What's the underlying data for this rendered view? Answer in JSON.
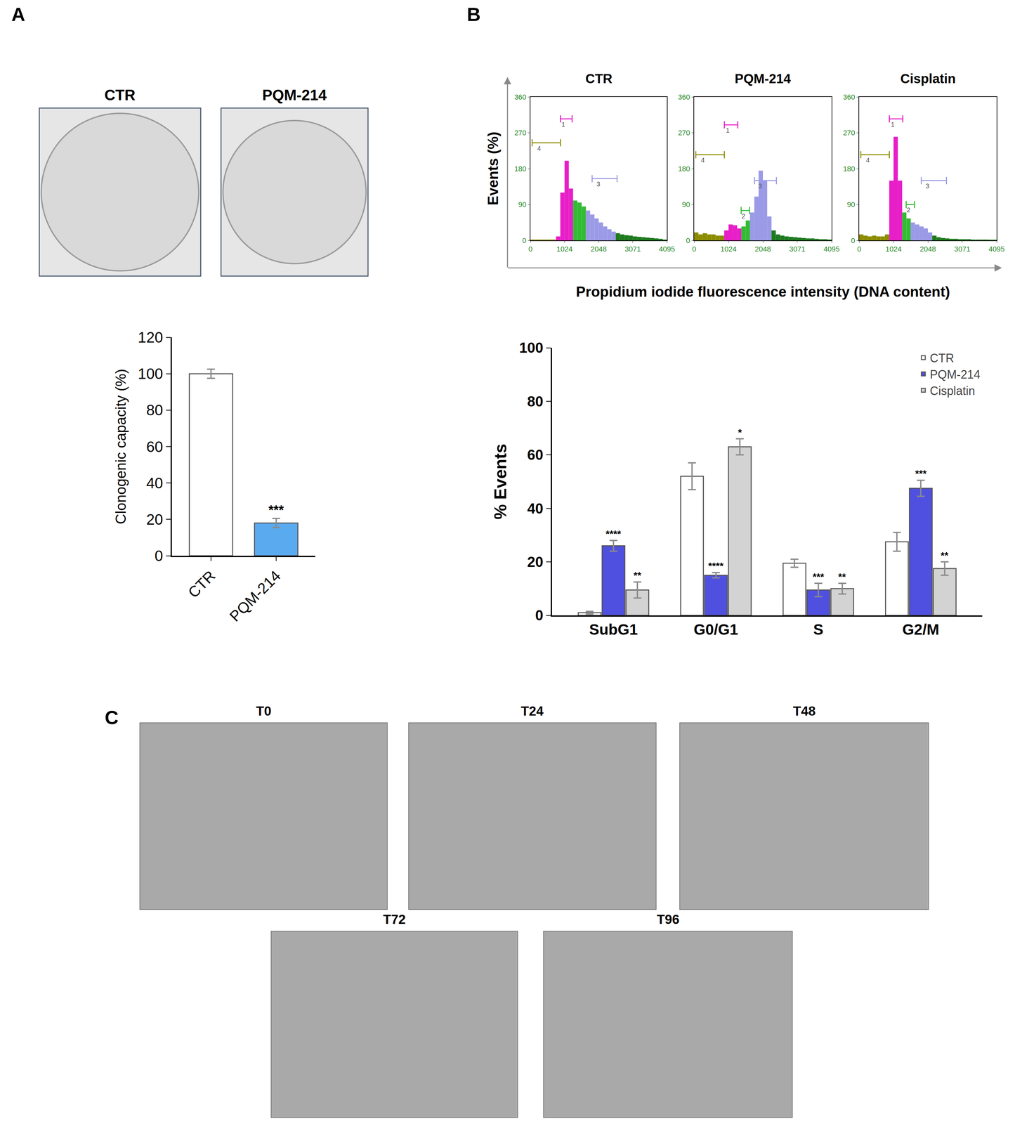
{
  "chart_data": [
    {
      "type": "dish",
      "panel": "A",
      "title": "CTR"
    },
    {
      "type": "dish",
      "title": "PQM-214"
    },
    {
      "type": "bar",
      "categories": [
        "CTR",
        "PQM-214"
      ],
      "values": [
        100,
        18
      ],
      "errors": [
        2.5,
        2.5
      ],
      "significance": [
        null,
        "***"
      ],
      "colors": [
        "#ffffff",
        "#5aaaf0"
      ],
      "ylabel": "Clonogenic capacity (%)",
      "ylim": [
        0,
        120
      ],
      "yticks": [
        0,
        20,
        40,
        60,
        80,
        100,
        120
      ],
      "grid": false
    },
    {
      "type": "histogram",
      "panel": "B",
      "title": "CTR",
      "ylabel": "Events (%)",
      "bins": [
        0,
        128,
        256,
        384,
        512,
        640,
        768,
        896,
        1024,
        1152,
        1280,
        1408,
        1536,
        1664,
        1792,
        1920,
        2048,
        2176,
        2304,
        2432,
        2560,
        2688,
        2816,
        2944,
        3072,
        3200,
        3328,
        3456,
        3584,
        3712,
        3840,
        3968,
        4096
      ],
      "counts": [
        2,
        2,
        2,
        2,
        2,
        2,
        10,
        120,
        200,
        130,
        100,
        95,
        85,
        75,
        65,
        55,
        45,
        35,
        28,
        22,
        18,
        15,
        13,
        12,
        10,
        9,
        8,
        7,
        6,
        5,
        4,
        2
      ],
      "colors": [
        "#8c8c00",
        "#8c8c00",
        "#8c8c00",
        "#8c8c00",
        "#8c8c00",
        "#8c8c00",
        "#e81ec8",
        "#e81ec8",
        "#e81ec8",
        "#e81ec8",
        "#33bb33",
        "#33bb33",
        "#33bb33",
        "#9a9ae6",
        "#9a9ae6",
        "#9a9ae6",
        "#9a9ae6",
        "#9a9ae6",
        "#9a9ae6",
        "#9a9ae6",
        "#1f7a1f",
        "#1f7a1f",
        "#1f7a1f",
        "#1f7a1f",
        "#1f7a1f",
        "#1f7a1f",
        "#1f7a1f",
        "#1f7a1f",
        "#1f7a1f",
        "#1f7a1f",
        "#1f7a1f",
        "#1f7a1f"
      ],
      "gates": [
        {
          "label": "4",
          "range": [
            50,
            900
          ],
          "y": 245,
          "color": "#8c8c00"
        },
        {
          "label": "1",
          "range": [
            900,
            1250
          ],
          "y": 305,
          "color": "#e81ec8"
        },
        {
          "label": "3",
          "range": [
            1850,
            2600
          ],
          "y": 155,
          "color": "#9a9ae6"
        }
      ],
      "xlim": [
        0,
        4095
      ],
      "xticks": [
        0,
        1024,
        2048,
        3071,
        4095
      ],
      "ylim": [
        0,
        360
      ],
      "yticks": [
        0,
        90,
        180,
        270,
        360
      ]
    },
    {
      "type": "histogram",
      "title": "PQM-214",
      "xlabel": "Propidium iodide fluorescence intensity (DNA content)",
      "bins": [
        0,
        128,
        256,
        384,
        512,
        640,
        768,
        896,
        1024,
        1152,
        1280,
        1408,
        1536,
        1664,
        1792,
        1920,
        2048,
        2176,
        2304,
        2432,
        2560,
        2688,
        2816,
        2944,
        3072,
        3200,
        3328,
        3456,
        3584,
        3712,
        3840,
        3968,
        4096
      ],
      "counts": [
        20,
        15,
        18,
        15,
        15,
        12,
        12,
        25,
        40,
        38,
        30,
        35,
        50,
        70,
        110,
        175,
        150,
        60,
        25,
        15,
        12,
        10,
        9,
        8,
        7,
        6,
        5,
        5,
        4,
        3,
        3,
        2
      ],
      "colors": [
        "#8c8c00",
        "#8c8c00",
        "#8c8c00",
        "#8c8c00",
        "#8c8c00",
        "#8c8c00",
        "#8c8c00",
        "#e81ec8",
        "#e81ec8",
        "#e81ec8",
        "#e81ec8",
        "#33bb33",
        "#33bb33",
        "#9a9ae6",
        "#9a9ae6",
        "#9a9ae6",
        "#9a9ae6",
        "#9a9ae6",
        "#1f7a1f",
        "#1f7a1f",
        "#1f7a1f",
        "#1f7a1f",
        "#1f7a1f",
        "#1f7a1f",
        "#1f7a1f",
        "#1f7a1f",
        "#1f7a1f",
        "#1f7a1f",
        "#1f7a1f",
        "#1f7a1f",
        "#1f7a1f",
        "#1f7a1f"
      ],
      "gates": [
        {
          "label": "4",
          "range": [
            50,
            900
          ],
          "y": 215,
          "color": "#8c8c00"
        },
        {
          "label": "1",
          "range": [
            900,
            1300
          ],
          "y": 290,
          "color": "#e81ec8"
        },
        {
          "label": "2",
          "range": [
            1400,
            1650
          ],
          "y": 75,
          "color": "#33bb33"
        },
        {
          "label": "3",
          "range": [
            1800,
            2450
          ],
          "y": 150,
          "color": "#9a9ae6"
        }
      ],
      "xlim": [
        0,
        4095
      ],
      "xticks": [
        0,
        1024,
        2048,
        3071,
        4095
      ],
      "ylim": [
        0,
        360
      ],
      "yticks": [
        0,
        90,
        180,
        270,
        360
      ]
    },
    {
      "type": "histogram",
      "title": "Cisplatin",
      "bins": [
        0,
        128,
        256,
        384,
        512,
        640,
        768,
        896,
        1024,
        1152,
        1280,
        1408,
        1536,
        1664,
        1792,
        1920,
        2048,
        2176,
        2304,
        2432,
        2560,
        2688,
        2816,
        2944,
        3072,
        3200,
        3328,
        3456,
        3584,
        3712,
        3840,
        3968,
        4096
      ],
      "counts": [
        15,
        12,
        10,
        12,
        10,
        10,
        15,
        150,
        260,
        150,
        70,
        55,
        45,
        40,
        35,
        30,
        20,
        12,
        8,
        6,
        5,
        4,
        4,
        3,
        3,
        3,
        2,
        2,
        2,
        2,
        1,
        1
      ],
      "colors": [
        "#8c8c00",
        "#8c8c00",
        "#8c8c00",
        "#8c8c00",
        "#8c8c00",
        "#8c8c00",
        "#8c8c00",
        "#e81ec8",
        "#e81ec8",
        "#e81ec8",
        "#33bb33",
        "#33bb33",
        "#9a9ae6",
        "#9a9ae6",
        "#9a9ae6",
        "#9a9ae6",
        "#9a9ae6",
        "#1f7a1f",
        "#1f7a1f",
        "#1f7a1f",
        "#1f7a1f",
        "#1f7a1f",
        "#1f7a1f",
        "#1f7a1f",
        "#1f7a1f",
        "#1f7a1f",
        "#1f7a1f",
        "#1f7a1f",
        "#1f7a1f",
        "#1f7a1f",
        "#1f7a1f",
        "#1f7a1f"
      ],
      "gates": [
        {
          "label": "4",
          "range": [
            50,
            900
          ],
          "y": 215,
          "color": "#8c8c00"
        },
        {
          "label": "1",
          "range": [
            900,
            1300
          ],
          "y": 305,
          "color": "#e81ec8"
        },
        {
          "label": "2",
          "range": [
            1400,
            1650
          ],
          "y": 90,
          "color": "#33bb33"
        },
        {
          "label": "3",
          "range": [
            1850,
            2600
          ],
          "y": 150,
          "color": "#9a9ae6"
        }
      ],
      "xlim": [
        0,
        4095
      ],
      "xticks": [
        0,
        1024,
        2048,
        3071,
        4095
      ],
      "ylim": [
        0,
        360
      ],
      "yticks": [
        0,
        90,
        180,
        270,
        360
      ]
    },
    {
      "type": "bar",
      "categories": [
        "SubG1",
        "G0/G1",
        "S",
        "G2/M"
      ],
      "series": [
        {
          "name": "CTR",
          "color": "#ffffff",
          "values": [
            1,
            52,
            19.5,
            27.5
          ],
          "errors": [
            0.5,
            5,
            1.5,
            3.5
          ],
          "significance": [
            null,
            null,
            null,
            null
          ]
        },
        {
          "name": "PQM-214",
          "color": "#5050e0",
          "values": [
            26,
            15,
            9.5,
            47.5
          ],
          "errors": [
            2,
            1,
            2.5,
            3
          ],
          "significance": [
            "****",
            "****",
            "***",
            "***"
          ]
        },
        {
          "name": "Cisplatin",
          "color": "#d3d3d3",
          "values": [
            9.5,
            63,
            10,
            17.5
          ],
          "errors": [
            3,
            3,
            2,
            2.5
          ],
          "significance": [
            "**",
            "*",
            "**",
            "**"
          ]
        }
      ],
      "ylabel": "% Events",
      "ylim": [
        0,
        100
      ],
      "yticks": [
        0,
        20,
        40,
        60,
        80,
        100
      ],
      "legend": "top right",
      "grid": false
    },
    {
      "type": "micrograph",
      "panel": "C",
      "title": "T0"
    },
    {
      "type": "micrograph",
      "title": "T24"
    },
    {
      "type": "micrograph",
      "title": "T48"
    },
    {
      "type": "micrograph",
      "title": "T72"
    },
    {
      "type": "micrograph",
      "title": "T96"
    }
  ]
}
